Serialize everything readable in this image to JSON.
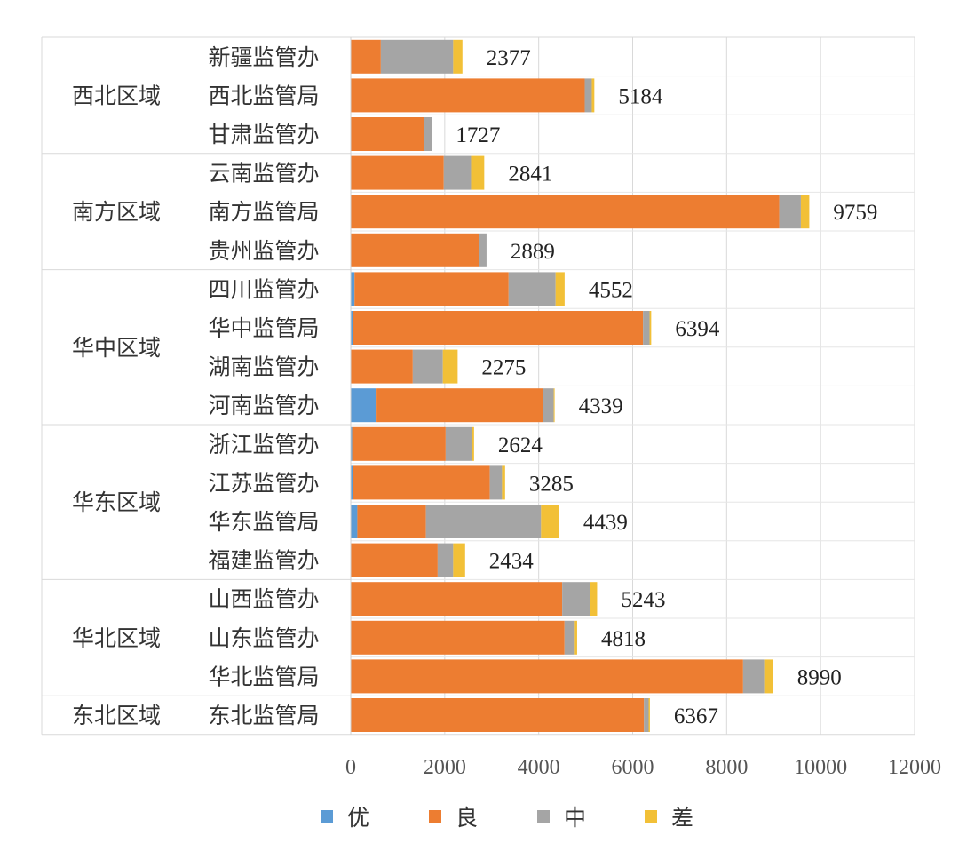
{
  "chart_data": {
    "type": "bar",
    "orientation": "horizontal",
    "stacked": true,
    "categories": [
      {
        "group": "西北区域",
        "name": "新疆监管办",
        "total": "2377"
      },
      {
        "group": "西北区域",
        "name": "西北监管局",
        "total": "5184"
      },
      {
        "group": "西北区域",
        "name": "甘肃监管办",
        "total": "1727"
      },
      {
        "group": "南方区域",
        "name": "云南监管办",
        "total": "2841"
      },
      {
        "group": "南方区域",
        "name": "南方监管局",
        "total": "9759"
      },
      {
        "group": "南方区域",
        "name": "贵州监管办",
        "total": "2889"
      },
      {
        "group": "华中区域",
        "name": "四川监管办",
        "total": "4552"
      },
      {
        "group": "华中区域",
        "name": "华中监管局",
        "total": "6394"
      },
      {
        "group": "华中区域",
        "name": "湖南监管办",
        "total": "2275"
      },
      {
        "group": "华中区域",
        "name": "河南监管办",
        "total": "4339"
      },
      {
        "group": "华东区域",
        "name": "浙江监管办",
        "total": "2624"
      },
      {
        "group": "华东区域",
        "name": "江苏监管办",
        "total": "3285"
      },
      {
        "group": "华东区域",
        "name": "华东监管局",
        "total": "4439"
      },
      {
        "group": "华东区域",
        "name": "福建监管办",
        "total": "2434"
      },
      {
        "group": "华北区域",
        "name": "山西监管办",
        "total": "5243"
      },
      {
        "group": "华北区域",
        "name": "山东监管办",
        "total": "4818"
      },
      {
        "group": "华北区域",
        "name": "华北监管局",
        "total": "8990"
      },
      {
        "group": "东北区域",
        "name": "东北监管局",
        "total": "6367"
      }
    ],
    "groups": [
      "西北区域",
      "南方区域",
      "华中区域",
      "华东区域",
      "华北区域",
      "东北区域"
    ],
    "series": [
      {
        "name": "优",
        "color": "#5b9bd5",
        "values": [
          0,
          0,
          0,
          0,
          0,
          0,
          80,
          40,
          0,
          550,
          30,
          40,
          140,
          0,
          0,
          0,
          0,
          0
        ]
      },
      {
        "name": "良",
        "color": "#ed7d31",
        "values": [
          640,
          4980,
          1550,
          1980,
          9120,
          2740,
          3280,
          6180,
          1320,
          3550,
          1990,
          2920,
          1460,
          1850,
          4500,
          4550,
          8350,
          6240
        ]
      },
      {
        "name": "中",
        "color": "#a5a5a5",
        "values": [
          1540,
          150,
          170,
          580,
          460,
          150,
          1000,
          140,
          640,
          220,
          560,
          260,
          2450,
          330,
          600,
          200,
          450,
          100
        ]
      },
      {
        "name": "差",
        "color": "#f2c037",
        "values": [
          197,
          54,
          7,
          281,
          179,
          0,
          192,
          34,
          315,
          19,
          44,
          65,
          389,
          254,
          143,
          68,
          190,
          27
        ]
      }
    ],
    "xlim": [
      0,
      12000
    ],
    "xticks": [
      "0",
      "2000",
      "4000",
      "6000",
      "8000",
      "10000",
      "12000"
    ],
    "grid": "vertical",
    "legend_position": "bottom"
  }
}
